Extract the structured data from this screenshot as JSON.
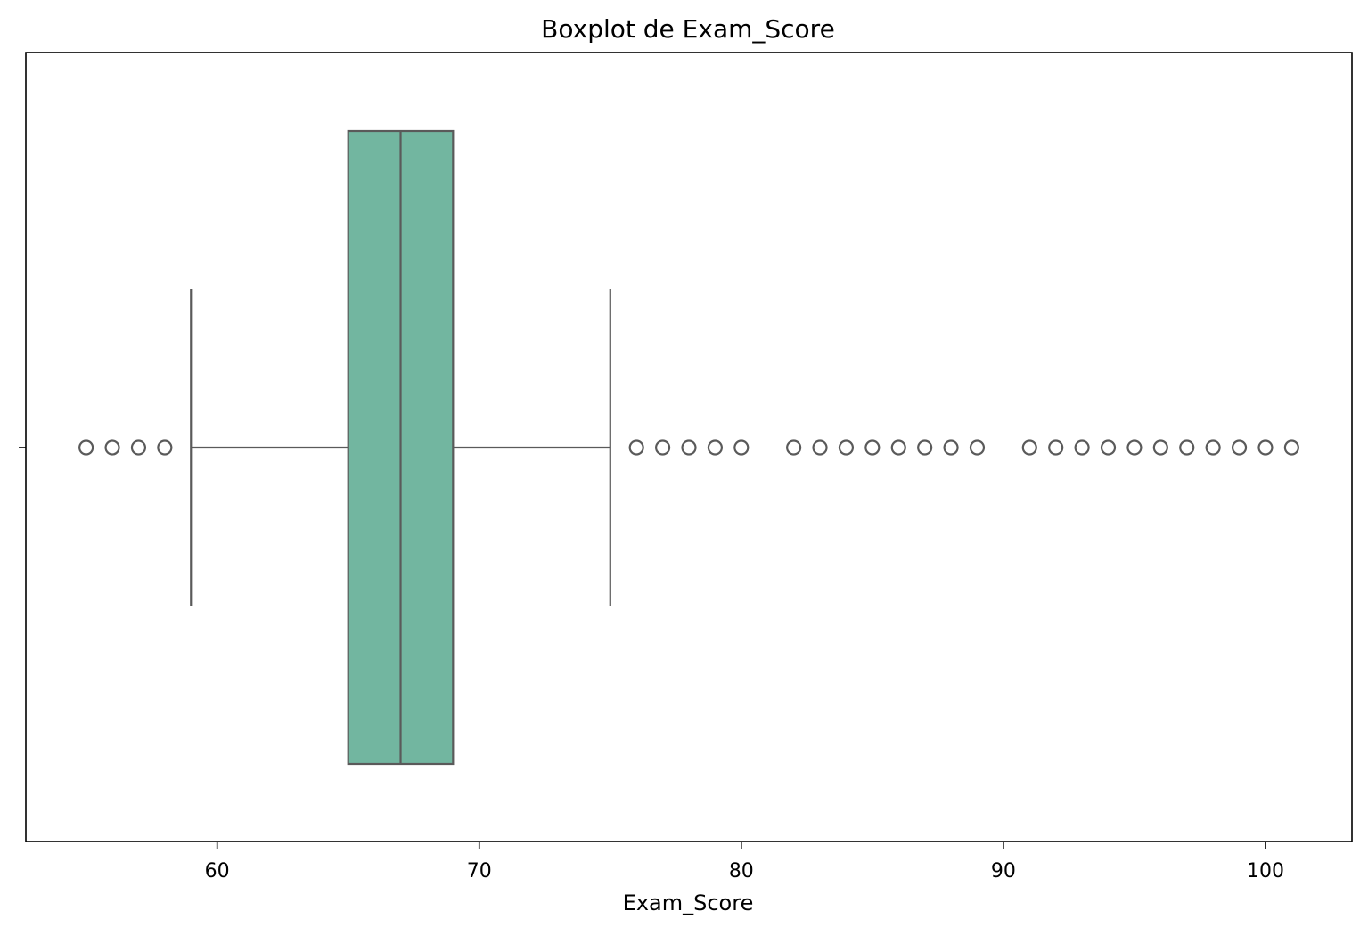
{
  "chart_data": {
    "type": "boxplot",
    "title": "Boxplot de Exam_Score",
    "xlabel": "Exam_Score",
    "ylabel": "",
    "orientation": "horizontal",
    "xlim": [
      52.7,
      103.3
    ],
    "xticks": [
      60,
      70,
      80,
      90,
      100
    ],
    "xtick_labels": [
      "60",
      "70",
      "80",
      "90",
      "100"
    ],
    "grid": false,
    "legend": "none",
    "box": {
      "whisker_low": 59,
      "q1": 65,
      "median": 67,
      "q3": 69,
      "whisker_high": 75,
      "fill_color": "#72b6a0",
      "line_color": "#5a5a5a"
    },
    "outliers": [
      55,
      56,
      57,
      58,
      76,
      77,
      78,
      79,
      80,
      82,
      83,
      84,
      85,
      86,
      87,
      88,
      89,
      91,
      92,
      93,
      94,
      95,
      96,
      97,
      98,
      99,
      100,
      101
    ]
  }
}
